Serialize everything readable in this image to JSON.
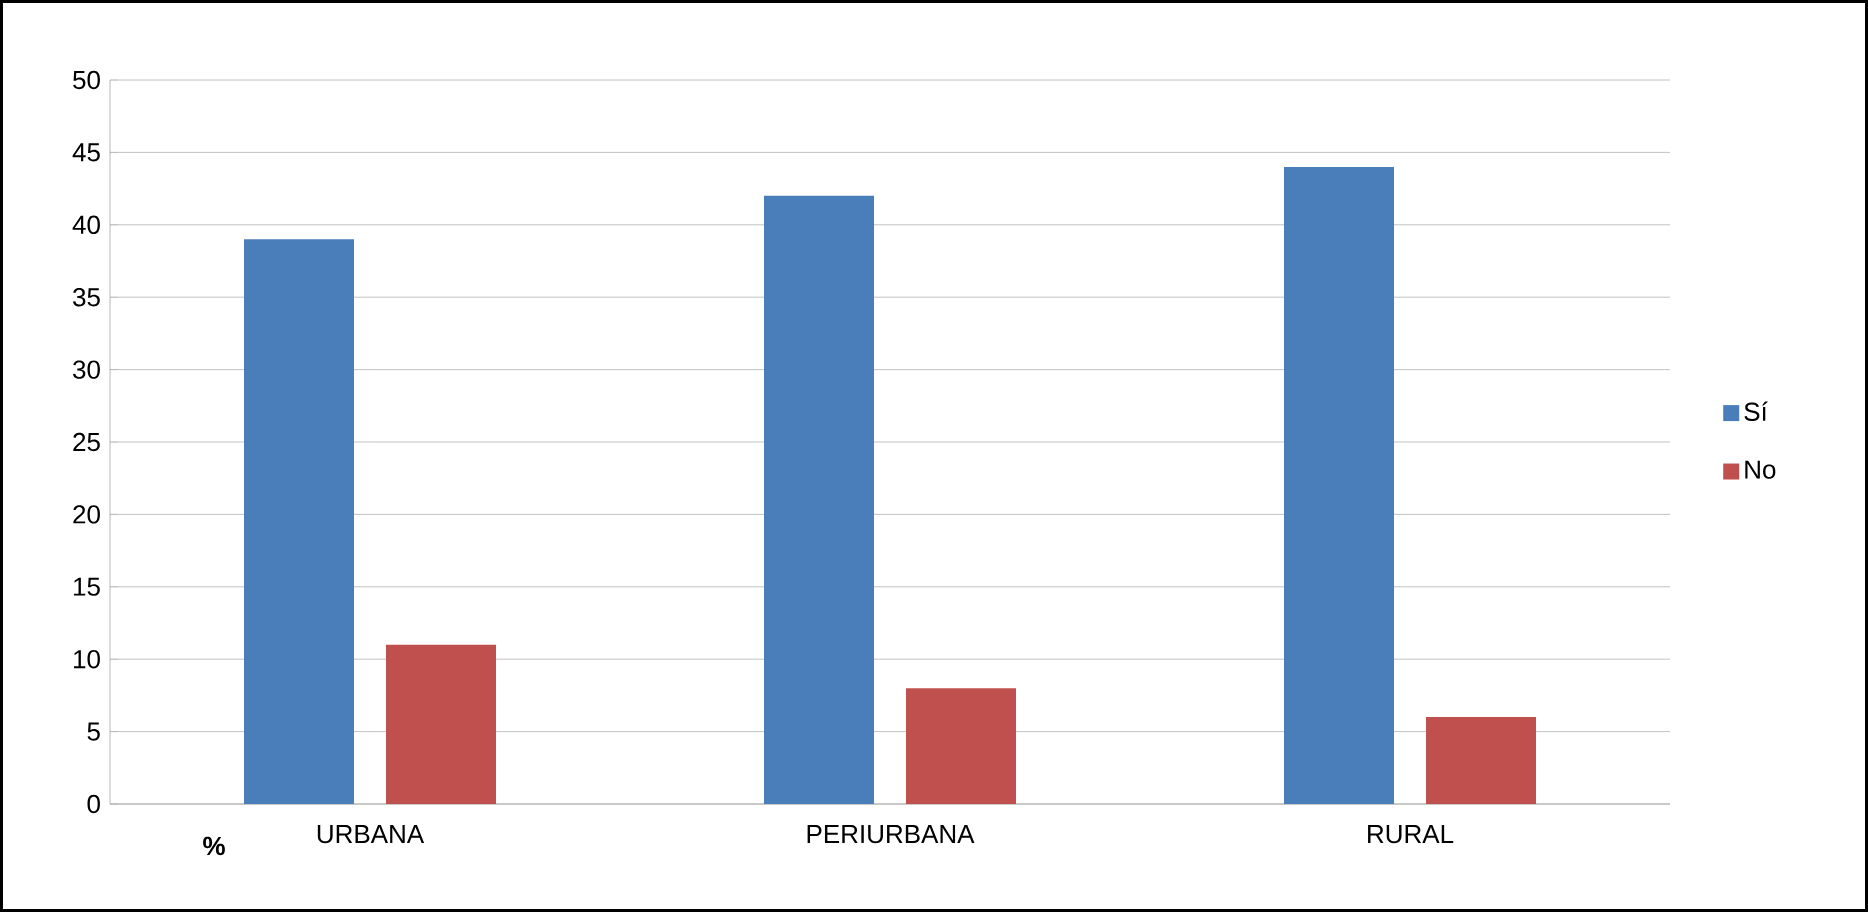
{
  "chart_data": {
    "type": "bar",
    "annotations": [
      "%"
    ],
    "categories": [
      "URBANA",
      "PERIURBANA",
      "RURAL"
    ],
    "series": [
      {
        "name": "Sí",
        "color": "#4a7ebb",
        "values": [
          39,
          42,
          44
        ]
      },
      {
        "name": "No",
        "color": "#c0504d",
        "values": [
          11,
          8,
          6
        ]
      }
    ],
    "ylim": [
      0,
      50
    ],
    "yticks": [
      0,
      5,
      10,
      15,
      20,
      25,
      30,
      35,
      40,
      45,
      50
    ],
    "grid": "y",
    "legend": "right"
  }
}
